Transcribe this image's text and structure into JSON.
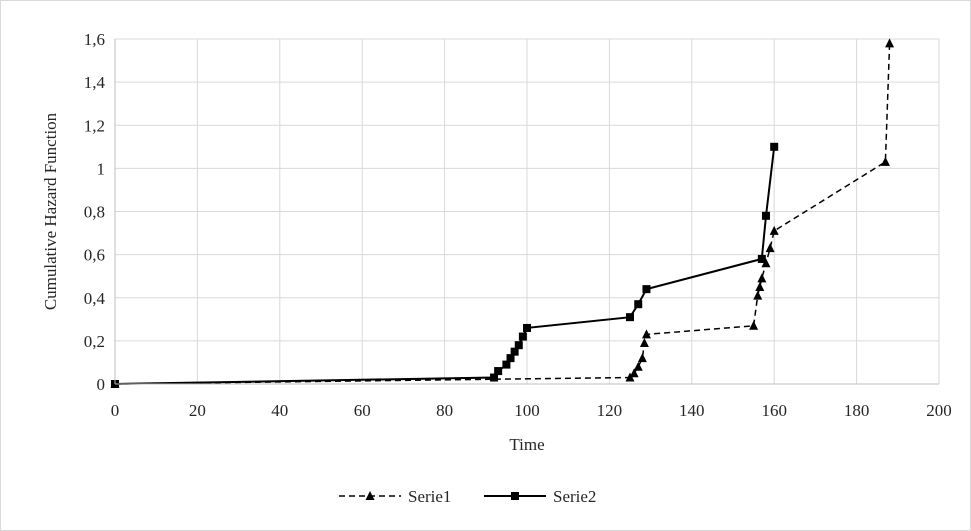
{
  "chart_data": {
    "type": "line",
    "xlabel": "Time",
    "ylabel": "Cumulative Hazard Function",
    "xlim": [
      0,
      200
    ],
    "ylim": [
      0,
      1.6
    ],
    "x_ticks": [
      "0",
      "20",
      "40",
      "60",
      "80",
      "100",
      "120",
      "140",
      "160",
      "180",
      "200"
    ],
    "y_ticks": [
      "0",
      "0,2",
      "0,4",
      "0,6",
      "0,8",
      "1",
      "1,2",
      "1,4",
      "1,6"
    ],
    "grid": true,
    "legend_position": "bottom",
    "series": [
      {
        "name": "Serie1",
        "line_style": "dashed",
        "marker": "triangle",
        "color": "#000000",
        "points": [
          [
            0,
            0
          ],
          [
            125,
            0.03
          ],
          [
            126,
            0.05
          ],
          [
            127,
            0.08
          ],
          [
            128,
            0.12
          ],
          [
            128.5,
            0.19
          ],
          [
            129,
            0.23
          ],
          [
            155,
            0.27
          ],
          [
            156,
            0.41
          ],
          [
            156.5,
            0.45
          ],
          [
            157,
            0.49
          ],
          [
            158,
            0.56
          ],
          [
            159,
            0.63
          ],
          [
            160,
            0.71
          ],
          [
            187,
            1.03
          ],
          [
            188,
            1.58
          ]
        ]
      },
      {
        "name": "Serie2",
        "line_style": "solid",
        "marker": "square",
        "color": "#000000",
        "points": [
          [
            0,
            0
          ],
          [
            92,
            0.03
          ],
          [
            93,
            0.06
          ],
          [
            95,
            0.09
          ],
          [
            96,
            0.12
          ],
          [
            97,
            0.15
          ],
          [
            98,
            0.18
          ],
          [
            99,
            0.22
          ],
          [
            100,
            0.26
          ],
          [
            125,
            0.31
          ],
          [
            127,
            0.37
          ],
          [
            129,
            0.44
          ],
          [
            157,
            0.58
          ],
          [
            158,
            0.78
          ],
          [
            160,
            1.1
          ]
        ]
      }
    ]
  }
}
